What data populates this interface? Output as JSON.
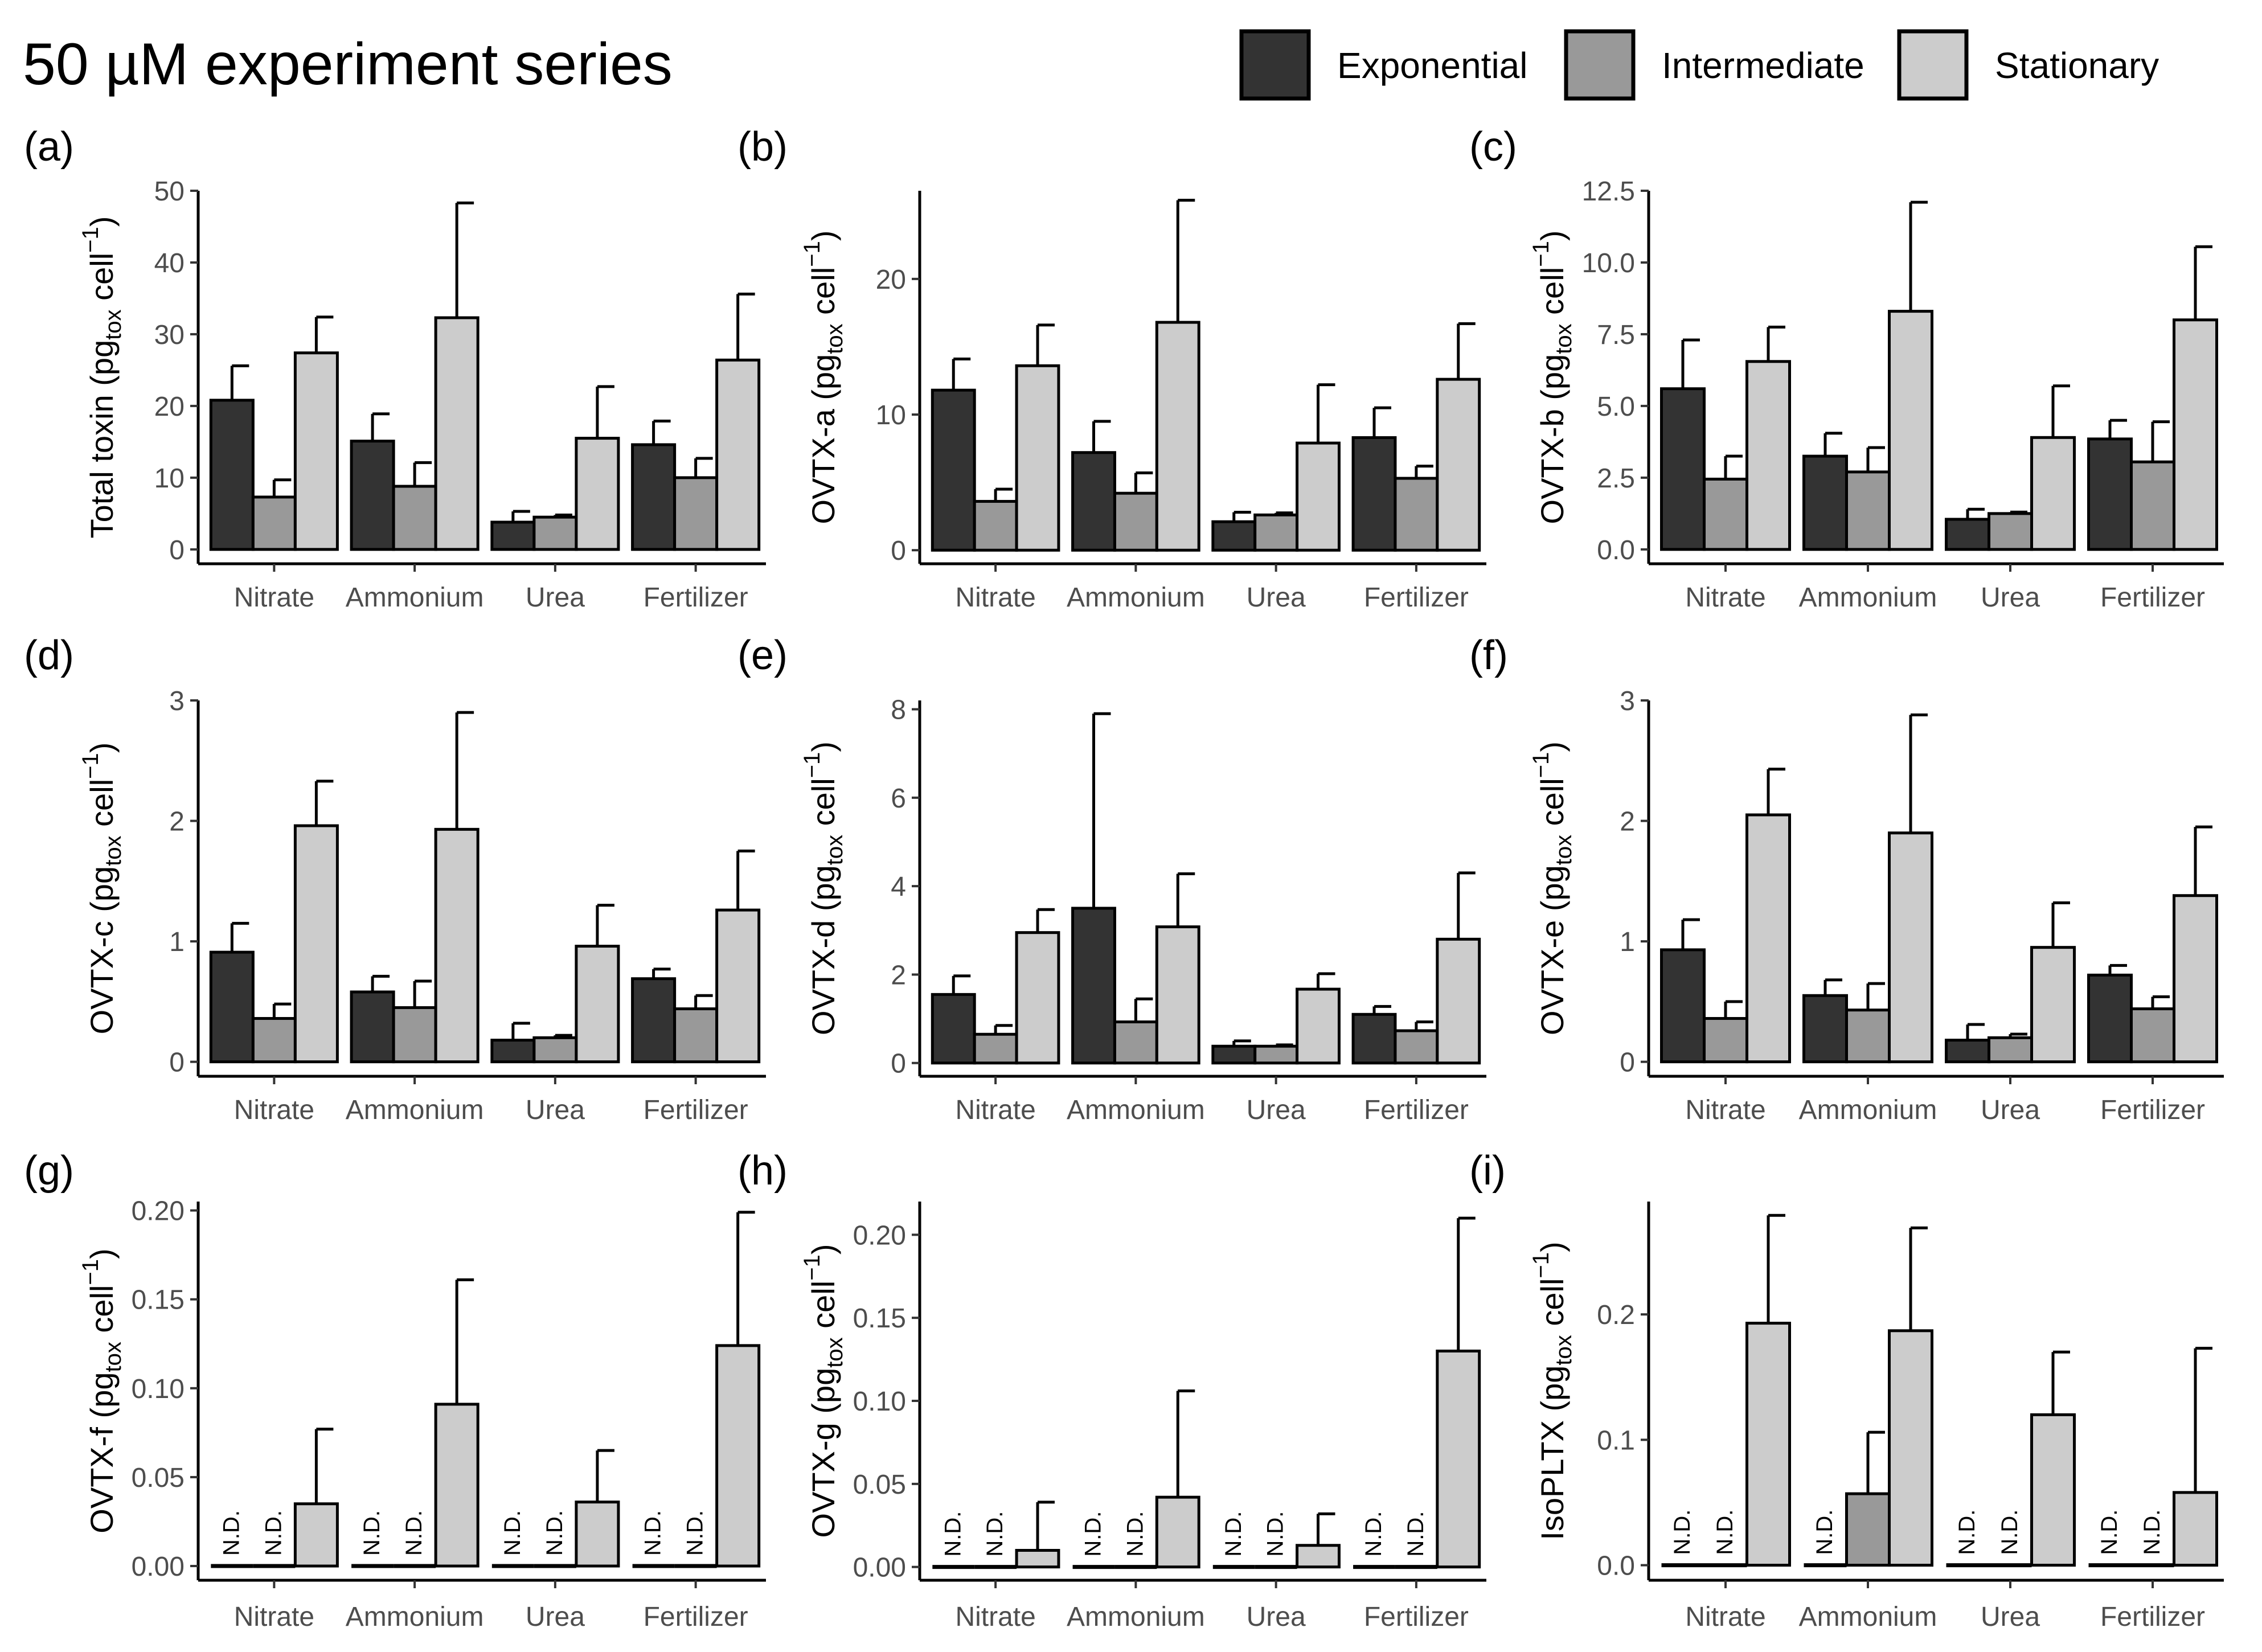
{
  "figure": {
    "title": "50 µM experiment series",
    "legend": [
      {
        "label": "Exponential",
        "color": "#333333"
      },
      {
        "label": "Intermediate",
        "color": "#999999"
      },
      {
        "label": "Stationary",
        "color": "#cccccc"
      }
    ],
    "nd_label": "N.D.",
    "ylabel_unit": {
      "pre": " (pg",
      "sub": "tox",
      "mid": " cell",
      "sup": "−1",
      "post": ")"
    }
  },
  "chart_data": [
    {
      "type": "bar",
      "panel": "(a)",
      "ylabel_prefix": "Total toxin",
      "categories": [
        "Nitrate",
        "Ammonium",
        "Urea",
        "Fertilizer"
      ],
      "yticks": [
        0,
        10,
        20,
        30,
        40,
        50
      ],
      "ytick_labels": [
        "0",
        "10",
        "20",
        "30",
        "40",
        "50"
      ],
      "ylim": [
        -2,
        50
      ],
      "series": [
        {
          "name": "Exponential",
          "values": [
            20.8,
            15.1,
            3.8,
            14.6
          ],
          "errors": [
            4.8,
            3.8,
            1.5,
            3.3
          ],
          "nd": [
            false,
            false,
            false,
            false
          ]
        },
        {
          "name": "Intermediate",
          "values": [
            7.3,
            8.8,
            4.5,
            10.0
          ],
          "errors": [
            2.4,
            3.3,
            0.3,
            2.7
          ],
          "nd": [
            false,
            false,
            false,
            false
          ]
        },
        {
          "name": "Stationary",
          "values": [
            27.4,
            32.3,
            15.5,
            26.4
          ],
          "errors": [
            5.0,
            16.0,
            7.2,
            9.2
          ],
          "nd": [
            false,
            false,
            false,
            false
          ]
        }
      ]
    },
    {
      "type": "bar",
      "panel": "(b)",
      "ylabel_prefix": "OVTX-a",
      "categories": [
        "Nitrate",
        "Ammonium",
        "Urea",
        "Fertilizer"
      ],
      "yticks": [
        0,
        10,
        20
      ],
      "ytick_labels": [
        "0",
        "10",
        "20"
      ],
      "ylim": [
        -1,
        26.5
      ],
      "series": [
        {
          "name": "Exponential",
          "values": [
            11.8,
            7.2,
            2.1,
            8.3
          ],
          "errors": [
            2.3,
            2.3,
            0.7,
            2.2
          ],
          "nd": [
            false,
            false,
            false,
            false
          ]
        },
        {
          "name": "Intermediate",
          "values": [
            3.6,
            4.2,
            2.6,
            5.3
          ],
          "errors": [
            0.9,
            1.5,
            0.15,
            0.9
          ],
          "nd": [
            false,
            false,
            false,
            false
          ]
        },
        {
          "name": "Stationary",
          "values": [
            13.6,
            16.8,
            7.9,
            12.6
          ],
          "errors": [
            3.0,
            9.0,
            4.3,
            4.1
          ],
          "nd": [
            false,
            false,
            false,
            false
          ]
        }
      ]
    },
    {
      "type": "bar",
      "panel": "(c)",
      "ylabel_prefix": "OVTX-b",
      "categories": [
        "Nitrate",
        "Ammonium",
        "Urea",
        "Fertilizer"
      ],
      "yticks": [
        0,
        2.5,
        5,
        7.5,
        10,
        12.5
      ],
      "ytick_labels": [
        "0.0",
        "2.5",
        "5.0",
        "7.5",
        "10.0",
        "12.5"
      ],
      "ylim": [
        -0.5,
        12.5
      ],
      "series": [
        {
          "name": "Exponential",
          "values": [
            5.6,
            3.25,
            1.05,
            3.85
          ],
          "errors": [
            1.7,
            0.8,
            0.35,
            0.65
          ],
          "nd": [
            false,
            false,
            false,
            false
          ]
        },
        {
          "name": "Intermediate",
          "values": [
            2.45,
            2.7,
            1.25,
            3.05
          ],
          "errors": [
            0.8,
            0.85,
            0.05,
            1.4
          ],
          "nd": [
            false,
            false,
            false,
            false
          ]
        },
        {
          "name": "Stationary",
          "values": [
            6.55,
            8.3,
            3.9,
            8.0
          ],
          "errors": [
            1.2,
            3.8,
            1.8,
            2.55
          ],
          "nd": [
            false,
            false,
            false,
            false
          ]
        }
      ]
    },
    {
      "type": "bar",
      "panel": "(d)",
      "ylabel_prefix": "OVTX-c",
      "categories": [
        "Nitrate",
        "Ammonium",
        "Urea",
        "Fertilizer"
      ],
      "yticks": [
        0,
        1,
        2,
        3
      ],
      "ytick_labels": [
        "0",
        "1",
        "2",
        "3"
      ],
      "ylim": [
        -0.12,
        3.0
      ],
      "series": [
        {
          "name": "Exponential",
          "values": [
            0.91,
            0.58,
            0.18,
            0.69
          ],
          "errors": [
            0.24,
            0.13,
            0.14,
            0.08
          ],
          "nd": [
            false,
            false,
            false,
            false
          ]
        },
        {
          "name": "Intermediate",
          "values": [
            0.36,
            0.45,
            0.2,
            0.44
          ],
          "errors": [
            0.12,
            0.22,
            0.02,
            0.11
          ],
          "nd": [
            false,
            false,
            false,
            false
          ]
        },
        {
          "name": "Stationary",
          "values": [
            1.96,
            1.93,
            0.96,
            1.26
          ],
          "errors": [
            0.37,
            0.97,
            0.34,
            0.49
          ],
          "nd": [
            false,
            false,
            false,
            false
          ]
        }
      ]
    },
    {
      "type": "bar",
      "panel": "(e)",
      "ylabel_prefix": "OVTX-d",
      "categories": [
        "Nitrate",
        "Ammonium",
        "Urea",
        "Fertilizer"
      ],
      "yticks": [
        0,
        2,
        4,
        6,
        8
      ],
      "ytick_labels": [
        "0",
        "2",
        "4",
        "6",
        "8"
      ],
      "ylim": [
        -0.3,
        8.2
      ],
      "series": [
        {
          "name": "Exponential",
          "values": [
            1.55,
            3.5,
            0.38,
            1.1
          ],
          "errors": [
            0.42,
            4.4,
            0.12,
            0.18
          ],
          "nd": [
            false,
            false,
            false,
            false
          ]
        },
        {
          "name": "Intermediate",
          "values": [
            0.65,
            0.93,
            0.38,
            0.73
          ],
          "errors": [
            0.2,
            0.52,
            0.03,
            0.2
          ],
          "nd": [
            false,
            false,
            false,
            false
          ]
        },
        {
          "name": "Stationary",
          "values": [
            2.95,
            3.08,
            1.67,
            2.8
          ],
          "errors": [
            0.52,
            1.2,
            0.35,
            1.5
          ],
          "nd": [
            false,
            false,
            false,
            false
          ]
        }
      ]
    },
    {
      "type": "bar",
      "panel": "(f)",
      "ylabel_prefix": "OVTX-e",
      "categories": [
        "Nitrate",
        "Ammonium",
        "Urea",
        "Fertilizer"
      ],
      "yticks": [
        0,
        1,
        2,
        3
      ],
      "ytick_labels": [
        "0",
        "1",
        "2",
        "3"
      ],
      "ylim": [
        -0.12,
        3.0
      ],
      "series": [
        {
          "name": "Exponential",
          "values": [
            0.93,
            0.55,
            0.18,
            0.72
          ],
          "errors": [
            0.25,
            0.13,
            0.13,
            0.08
          ],
          "nd": [
            false,
            false,
            false,
            false
          ]
        },
        {
          "name": "Intermediate",
          "values": [
            0.36,
            0.43,
            0.2,
            0.44
          ],
          "errors": [
            0.14,
            0.22,
            0.03,
            0.1
          ],
          "nd": [
            false,
            false,
            false,
            false
          ]
        },
        {
          "name": "Stationary",
          "values": [
            2.05,
            1.9,
            0.95,
            1.38
          ],
          "errors": [
            0.38,
            0.98,
            0.37,
            0.57
          ],
          "nd": [
            false,
            false,
            false,
            false
          ]
        }
      ]
    },
    {
      "type": "bar",
      "panel": "(g)",
      "ylabel_prefix": "OVTX-f",
      "categories": [
        "Nitrate",
        "Ammonium",
        "Urea",
        "Fertilizer"
      ],
      "yticks": [
        0,
        0.05,
        0.1,
        0.15,
        0.2
      ],
      "ytick_labels": [
        "0.00",
        "0.05",
        "0.10",
        "0.15",
        "0.20"
      ],
      "ylim": [
        -0.008,
        0.205
      ],
      "series": [
        {
          "name": "Exponential",
          "values": [
            0,
            0,
            0,
            0
          ],
          "errors": [
            0,
            0,
            0,
            0
          ],
          "nd": [
            true,
            true,
            true,
            true
          ]
        },
        {
          "name": "Intermediate",
          "values": [
            0,
            0,
            0,
            0
          ],
          "errors": [
            0,
            0,
            0,
            0
          ],
          "nd": [
            true,
            true,
            true,
            true
          ]
        },
        {
          "name": "Stationary",
          "values": [
            0.035,
            0.091,
            0.036,
            0.124
          ],
          "errors": [
            0.042,
            0.07,
            0.029,
            0.075
          ],
          "nd": [
            false,
            false,
            false,
            false
          ]
        }
      ]
    },
    {
      "type": "bar",
      "panel": "(h)",
      "ylabel_prefix": "OVTX-g",
      "categories": [
        "Nitrate",
        "Ammonium",
        "Urea",
        "Fertilizer"
      ],
      "yticks": [
        0,
        0.05,
        0.1,
        0.15,
        0.2
      ],
      "ytick_labels": [
        "0.00",
        "0.05",
        "0.10",
        "0.15",
        "0.20"
      ],
      "ylim": [
        -0.008,
        0.22
      ],
      "series": [
        {
          "name": "Exponential",
          "values": [
            0,
            0,
            0,
            0
          ],
          "errors": [
            0,
            0,
            0,
            0
          ],
          "nd": [
            true,
            true,
            true,
            true
          ]
        },
        {
          "name": "Intermediate",
          "values": [
            0,
            0,
            0,
            0
          ],
          "errors": [
            0,
            0,
            0,
            0
          ],
          "nd": [
            true,
            true,
            true,
            true
          ]
        },
        {
          "name": "Stationary",
          "values": [
            0.01,
            0.042,
            0.013,
            0.13
          ],
          "errors": [
            0.029,
            0.064,
            0.019,
            0.08
          ],
          "nd": [
            false,
            false,
            false,
            false
          ]
        }
      ]
    },
    {
      "type": "bar",
      "panel": "(i)",
      "ylabel_prefix": "IsoPLTX",
      "categories": [
        "Nitrate",
        "Ammonium",
        "Urea",
        "Fertilizer"
      ],
      "yticks": [
        0,
        0.1,
        0.2
      ],
      "ytick_labels": [
        "0.0",
        "0.1",
        "0.2"
      ],
      "ylim": [
        -0.012,
        0.29
      ],
      "series": [
        {
          "name": "Exponential",
          "values": [
            0,
            0,
            0,
            0
          ],
          "errors": [
            0,
            0,
            0,
            0
          ],
          "nd": [
            true,
            true,
            true,
            true
          ]
        },
        {
          "name": "Intermediate",
          "values": [
            0,
            0.057,
            0,
            0
          ],
          "errors": [
            0,
            0.049,
            0,
            0
          ],
          "nd": [
            true,
            false,
            true,
            true
          ]
        },
        {
          "name": "Stationary",
          "values": [
            0.193,
            0.187,
            0.12,
            0.058
          ],
          "errors": [
            0.086,
            0.082,
            0.05,
            0.115
          ],
          "nd": [
            false,
            false,
            false,
            false
          ]
        }
      ]
    }
  ]
}
